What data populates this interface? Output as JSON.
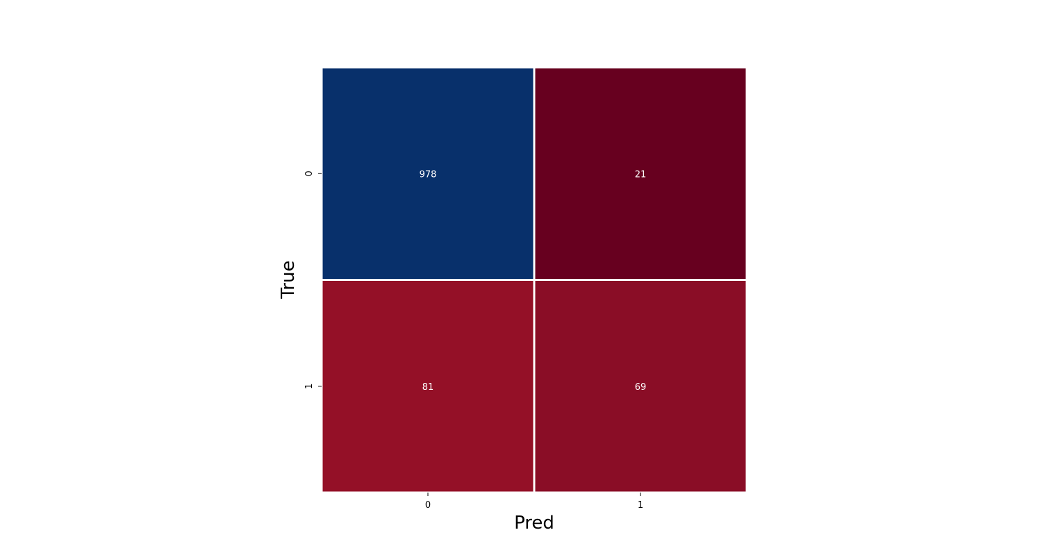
{
  "chart_data": {
    "type": "heatmap",
    "title": "",
    "xlabel": "Pred",
    "ylabel": "True",
    "x_categories": [
      "0",
      "1"
    ],
    "y_categories": [
      "0",
      "1"
    ],
    "values": [
      [
        978,
        21
      ],
      [
        81,
        69
      ]
    ],
    "cell_colors": [
      [
        "#08306b",
        "#67001f"
      ],
      [
        "#941027",
        "#8a0d26"
      ]
    ],
    "colorbar": false,
    "grid_line_color": "#ffffff"
  }
}
